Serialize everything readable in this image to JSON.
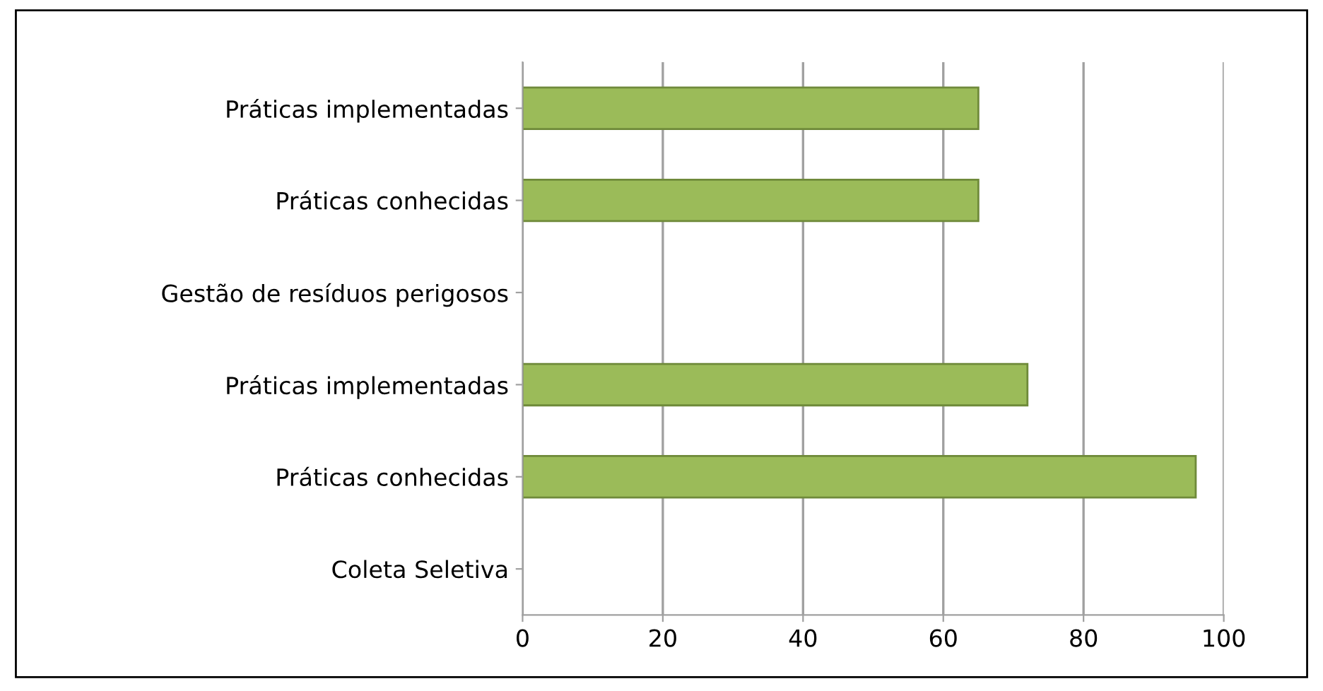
{
  "chart_data": {
    "type": "bar",
    "orientation": "horizontal",
    "categories": [
      "Práticas implementadas",
      "Práticas conhecidas",
      "Gestão de resíduos perigosos",
      "Práticas implementadas",
      "Práticas conhecidas",
      "Coleta Seletiva"
    ],
    "values": [
      65,
      65,
      null,
      72,
      96,
      null
    ],
    "color": "#9bbb59",
    "xlim": [
      0,
      100
    ],
    "xticks": [
      0,
      20,
      40,
      60,
      80,
      100
    ],
    "grid": "x",
    "legend": false
  }
}
